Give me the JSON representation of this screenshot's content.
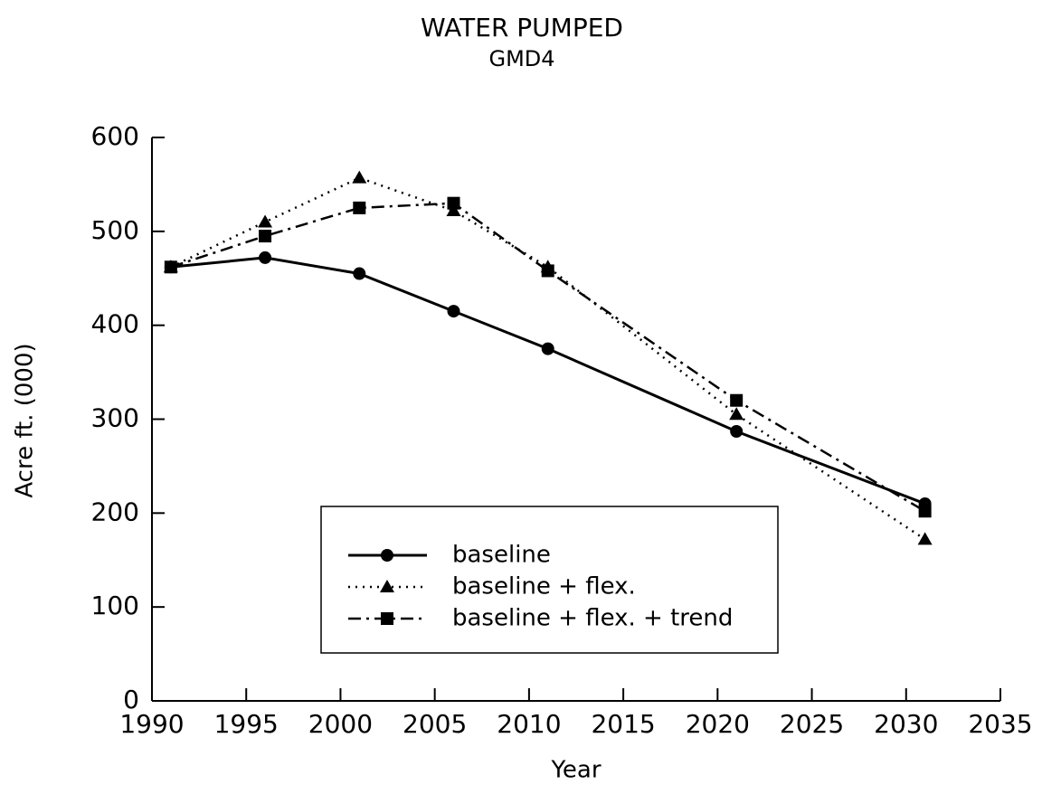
{
  "chart_data": {
    "type": "line",
    "title": "WATER PUMPED",
    "subtitle": "GMD4",
    "xlabel": "Year",
    "ylabel": "Acre ft. (000)",
    "x": [
      1991,
      1996,
      2001,
      2006,
      2011,
      2021,
      2031
    ],
    "series": [
      {
        "name": "baseline",
        "color": "#000000",
        "marker": "circle",
        "linestyle": "solid",
        "values": [
          462,
          472,
          455,
          415,
          375,
          287,
          210
        ]
      },
      {
        "name": "baseline + flex.",
        "color": "#000000",
        "marker": "triangle",
        "linestyle": "dotted",
        "values": [
          462,
          510,
          557,
          522,
          462,
          305,
          172
        ]
      },
      {
        "name": "baseline + flex. + trend",
        "color": "#000000",
        "marker": "square",
        "linestyle": "dashdot",
        "values": [
          462,
          495,
          525,
          530,
          458,
          320,
          202
        ]
      }
    ],
    "xlim": [
      1990,
      2035
    ],
    "xticks": [
      1990,
      1995,
      2000,
      2005,
      2010,
      2015,
      2020,
      2025,
      2030,
      2035
    ],
    "ylim": [
      0,
      600
    ],
    "yticks": [
      0,
      100,
      200,
      300,
      400,
      500,
      600
    ],
    "grid": false,
    "legend": "lower center"
  }
}
